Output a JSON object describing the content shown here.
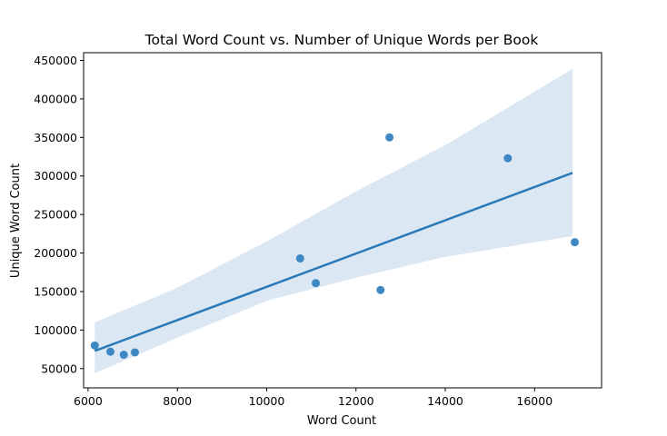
{
  "chart_data": {
    "type": "scatter",
    "title": "Total Word Count vs. Number of Unique Words per Book",
    "xlabel": "Word Count",
    "ylabel": "Unique Word Count",
    "xlim": [
      5900,
      17500
    ],
    "ylim": [
      25000,
      460000
    ],
    "xticks": [
      6000,
      8000,
      10000,
      12000,
      14000,
      16000
    ],
    "yticks": [
      50000,
      100000,
      150000,
      200000,
      250000,
      300000,
      350000,
      400000,
      450000
    ],
    "xtick_labels": [
      "6000",
      "8000",
      "10000",
      "12000",
      "14000",
      "16000"
    ],
    "ytick_labels": [
      "50000",
      "100000",
      "150000",
      "200000",
      "250000",
      "300000",
      "350000",
      "400000",
      "450000"
    ],
    "grid": false,
    "colors": {
      "points": "#3582c0",
      "line": "#2a7ab9",
      "band": "#dbe7f2",
      "axis": "#000000"
    },
    "points": [
      {
        "x": 6150,
        "y": 80000
      },
      {
        "x": 6500,
        "y": 72000
      },
      {
        "x": 6800,
        "y": 68000
      },
      {
        "x": 7050,
        "y": 71000
      },
      {
        "x": 10750,
        "y": 193000
      },
      {
        "x": 11100,
        "y": 161000
      },
      {
        "x": 12550,
        "y": 152000
      },
      {
        "x": 12750,
        "y": 350000
      },
      {
        "x": 15400,
        "y": 323000
      },
      {
        "x": 16900,
        "y": 214000
      }
    ],
    "regression": {
      "x": [
        6150,
        16850
      ],
      "y": [
        73000,
        304000
      ]
    },
    "confidence_band": {
      "x": [
        6150,
        8000,
        10000,
        12000,
        14000,
        16850
      ],
      "upper": [
        110000,
        155000,
        215000,
        280000,
        340000,
        439000
      ],
      "lower": [
        44000,
        90000,
        138000,
        168000,
        195000,
        222000
      ]
    }
  }
}
